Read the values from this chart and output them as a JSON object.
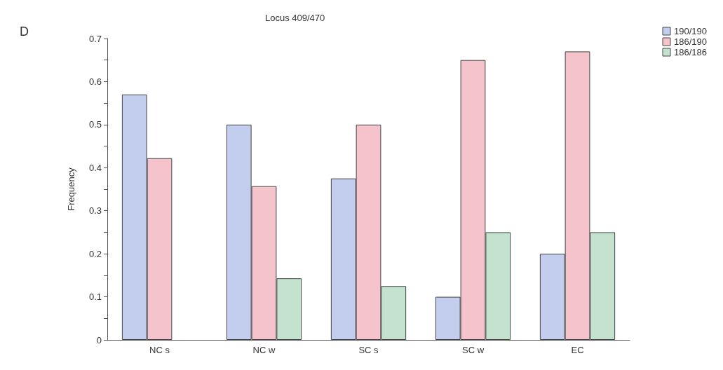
{
  "chart_data": {
    "type": "bar",
    "title": "Locus 409/470",
    "ylabel": "Frequency",
    "annotations": [
      "D"
    ],
    "categories": [
      "NC s",
      "NC w",
      "SC s",
      "SC w",
      "EC"
    ],
    "series": [
      {
        "name": "190/190",
        "color": "#c3cdee",
        "values": [
          0.57,
          0.5,
          0.375,
          0.1,
          0.2
        ]
      },
      {
        "name": "186/190",
        "color": "#f4c3cb",
        "values": [
          0.422,
          0.357,
          0.5,
          0.65,
          0.67
        ]
      },
      {
        "name": "186/186",
        "color": "#c3e3cf",
        "values": [
          null,
          0.143,
          0.125,
          0.25,
          0.25
        ]
      }
    ],
    "ylim": [
      0,
      0.7
    ],
    "yticks": [
      0,
      {
        "value": 0.05,
        "label": null
      },
      0.1,
      {
        "value": 0.15,
        "label": null
      },
      0.2,
      {
        "value": 0.25,
        "label": null
      },
      0.3,
      {
        "value": 0.35,
        "label": null
      },
      0.4,
      {
        "value": 0.45,
        "label": null
      },
      0.5,
      {
        "value": 0.55,
        "label": null
      },
      0.6,
      {
        "value": 0.65,
        "label": null
      },
      0.7
    ],
    "grid": false,
    "legend": "top right"
  }
}
